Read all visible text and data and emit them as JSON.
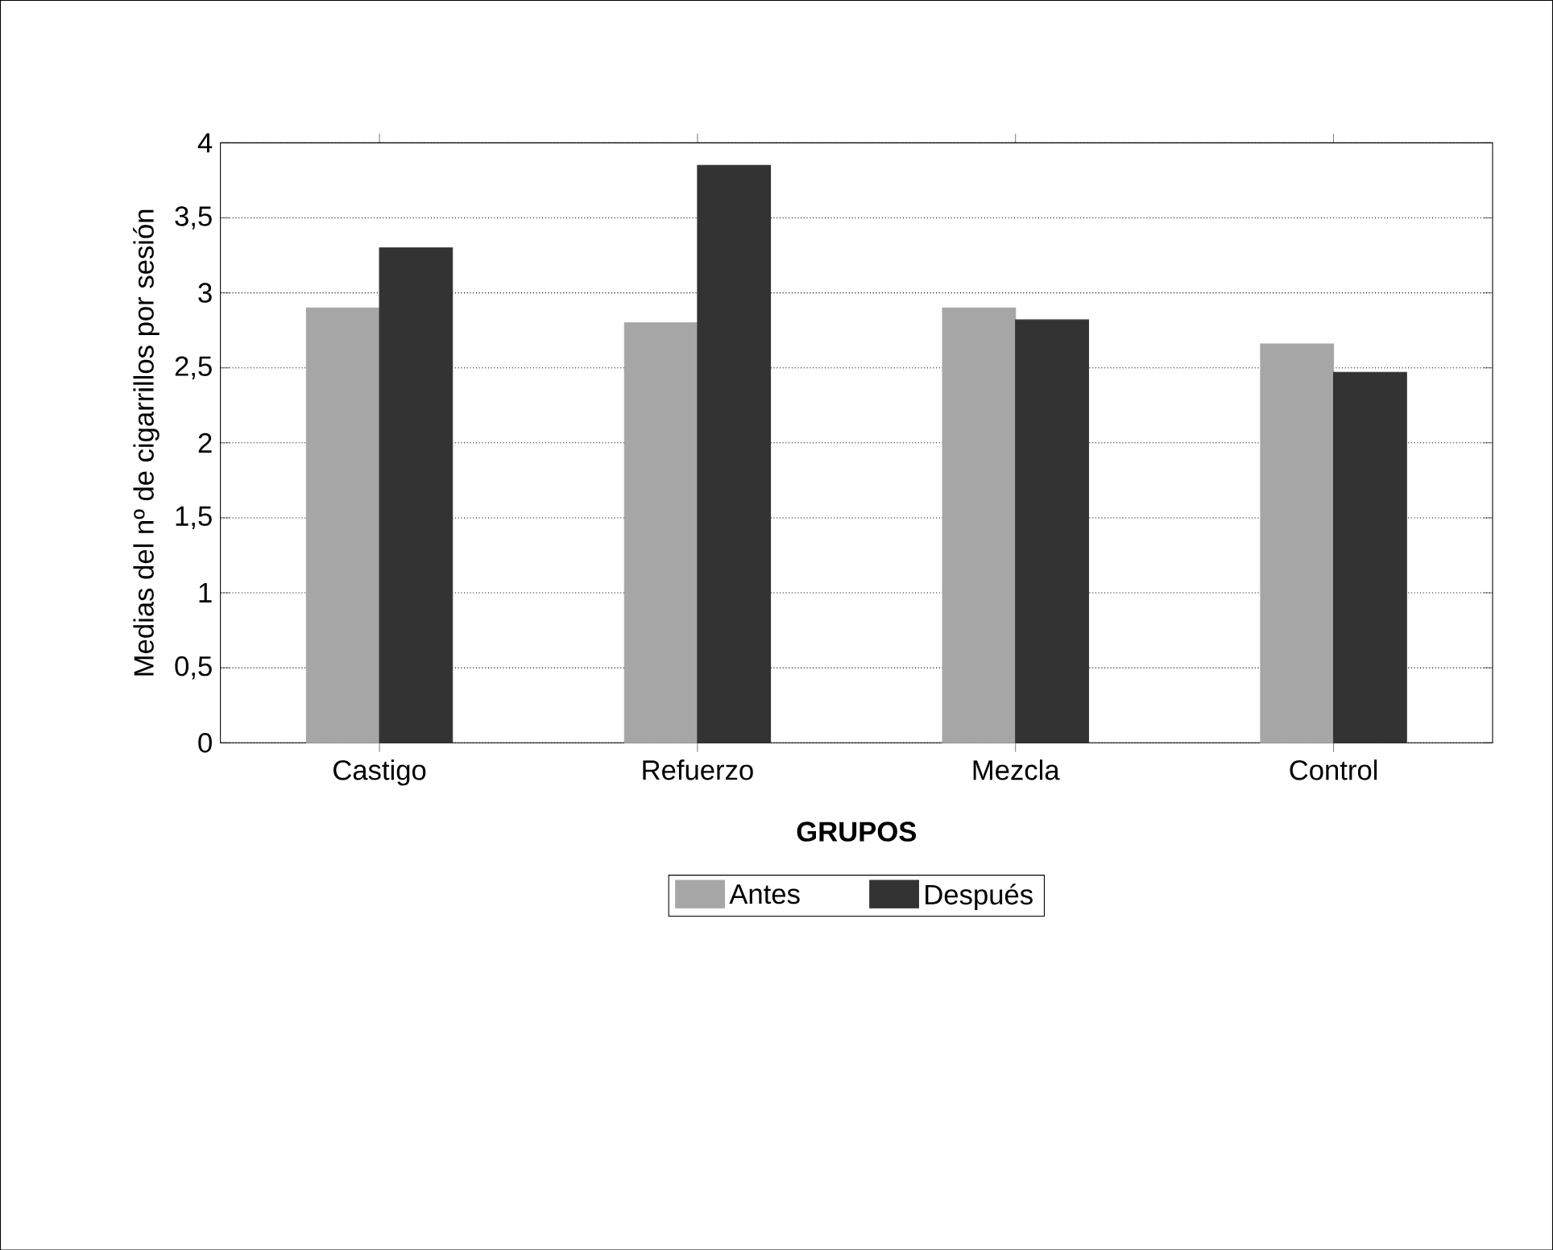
{
  "chart_data": {
    "type": "bar",
    "xlabel": "GRUPOS",
    "ylabel": "Medias del nº de cigarrillos por sesión",
    "categories": [
      "Castigo",
      "Refuerzo",
      "Mezcla",
      "Control"
    ],
    "series": [
      {
        "name": "Antes",
        "color": "#a6a6a6",
        "values": [
          2.9,
          2.8,
          2.9,
          2.66
        ]
      },
      {
        "name": "Después",
        "color": "#333333",
        "values": [
          3.3,
          3.85,
          2.82,
          2.47
        ]
      }
    ],
    "ylim": [
      0,
      4
    ],
    "yticks": [
      0,
      {
        "value": 0.5,
        "label": "0,5"
      },
      1,
      {
        "value": 1.5,
        "label": "1,5"
      },
      2,
      {
        "value": 2.5,
        "label": "2,5"
      },
      3,
      {
        "value": 3.5,
        "label": "3,5"
      },
      4
    ],
    "grid": "y",
    "legend": "bottom"
  }
}
